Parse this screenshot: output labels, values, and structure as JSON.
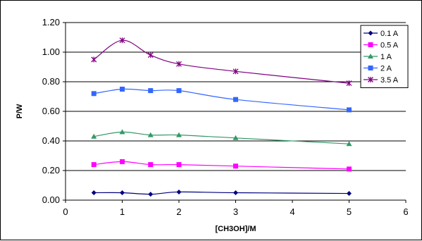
{
  "chart_data": {
    "type": "line",
    "title": "",
    "xlabel": "[CH3OH]/M",
    "ylabel": "P/W",
    "xlim": [
      0,
      6
    ],
    "ylim": [
      0,
      1.2
    ],
    "xticks": [
      "0",
      "1",
      "2",
      "3",
      "4",
      "5",
      "6"
    ],
    "yticks": [
      "0.00",
      "0.20",
      "0.40",
      "0.60",
      "0.80",
      "1.00",
      "1.20"
    ],
    "grid": "horizontal",
    "legend_position": "top-right",
    "smooth": true,
    "x": [
      0.5,
      1,
      1.5,
      2,
      3,
      5
    ],
    "series": [
      {
        "name": "0.1 A",
        "color": "#000080",
        "marker": "diamond",
        "values": [
          0.05,
          0.05,
          0.04,
          0.055,
          0.05,
          0.045
        ]
      },
      {
        "name": "0.5 A",
        "color": "#FF00FF",
        "marker": "square",
        "values": [
          0.24,
          0.26,
          0.24,
          0.24,
          0.23,
          0.21
        ]
      },
      {
        "name": "1 A",
        "color": "#339966",
        "marker": "triangle",
        "values": [
          0.43,
          0.46,
          0.44,
          0.44,
          0.42,
          0.38
        ]
      },
      {
        "name": "2 A",
        "color": "#3366FF",
        "marker": "square",
        "values": [
          0.72,
          0.75,
          0.74,
          0.74,
          0.68,
          0.61
        ]
      },
      {
        "name": "3.5 A",
        "color": "#800080",
        "marker": "star",
        "values": [
          0.95,
          1.08,
          0.98,
          0.92,
          0.87,
          0.79
        ]
      }
    ]
  }
}
